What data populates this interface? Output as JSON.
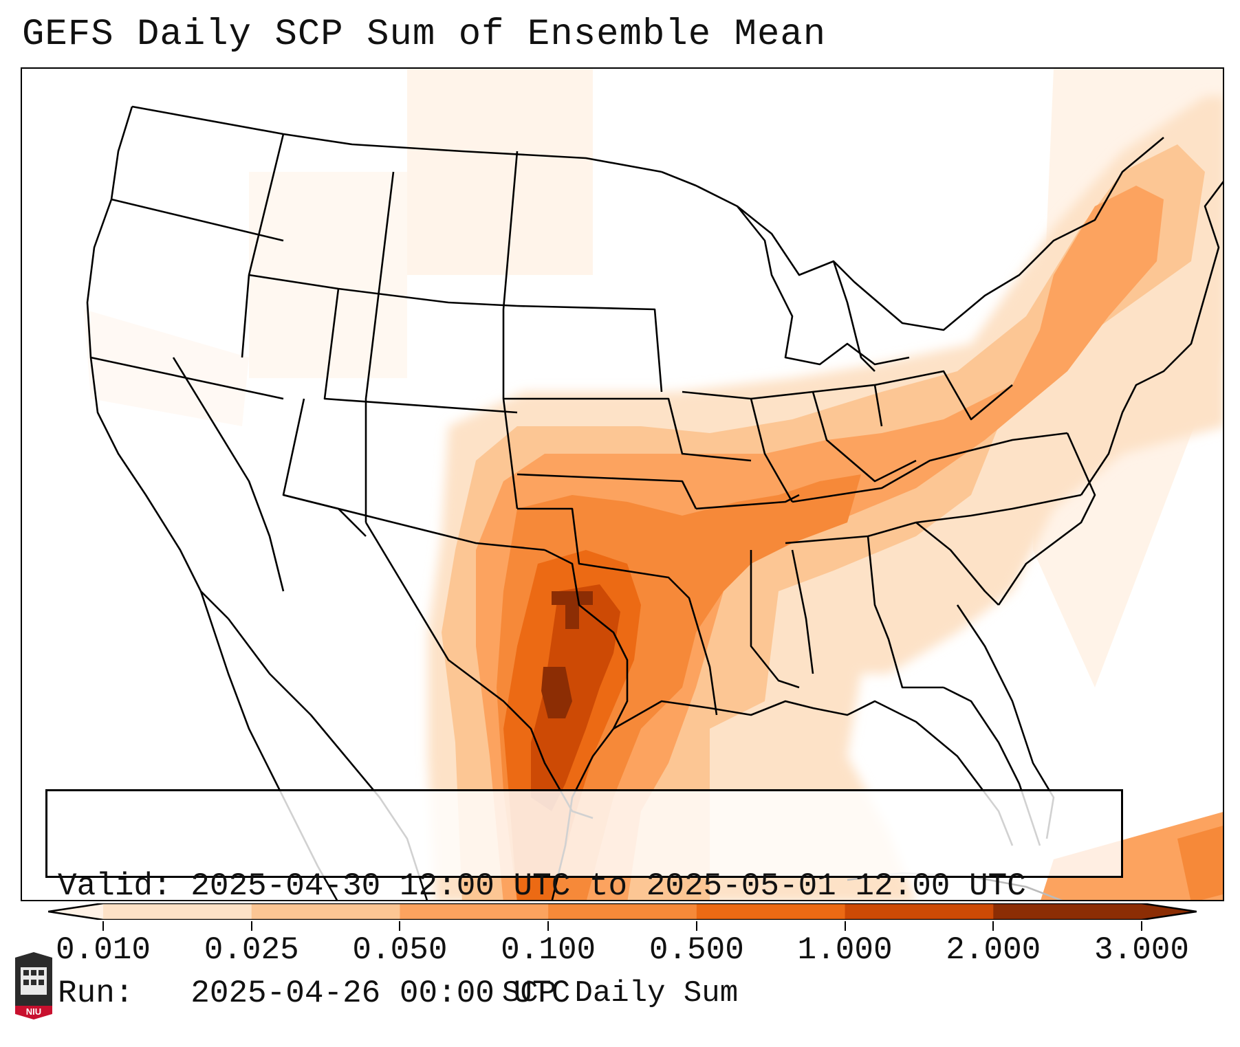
{
  "title": "GEFS Daily SCP Sum of Ensemble Mean",
  "info": {
    "valid_line": "Valid: 2025-04-30 12:00 UTC to 2025-05-01 12:00 UTC",
    "run_line": "Run:   2025-04-26 00:00 UTC"
  },
  "colorbar": {
    "label": "SCP Daily Sum",
    "ticks": [
      "0.010",
      "0.025",
      "0.050",
      "0.100",
      "0.500",
      "1.000",
      "2.000",
      "3.000"
    ],
    "colors": [
      "#fff2e6",
      "#fde2c7",
      "#fcc694",
      "#fca35f",
      "#f68939",
      "#ec6a14",
      "#cd4a05",
      "#8c2d04"
    ]
  },
  "logo": {
    "text": "NIU"
  }
}
